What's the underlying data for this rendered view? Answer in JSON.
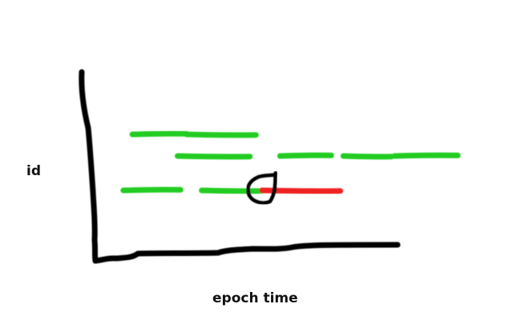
{
  "chart_data": {
    "type": "line",
    "style": "hand-drawn sketch",
    "xlabel": "epoch time",
    "ylabel": "id",
    "grid": false,
    "legend": "none",
    "axis_color": "#000000",
    "segments": [
      {
        "row": 1,
        "color": "#22cc22",
        "parts": [
          [
            0.12,
            0.3
          ],
          [
            0.3,
            0.53
          ]
        ]
      },
      {
        "row": 2,
        "color": "#22cc22",
        "parts": [
          [
            0.27,
            0.51
          ],
          [
            0.61,
            0.78
          ],
          [
            0.82,
            0.98
          ],
          [
            0.99,
            1.2
          ]
        ]
      },
      {
        "row": 3,
        "color": "#22cc22",
        "parts": [
          [
            0.09,
            0.28
          ],
          [
            0.35,
            0.55
          ]
        ]
      },
      {
        "row": 3,
        "color": "#ee2222",
        "parts": [
          [
            0.55,
            0.81
          ]
        ]
      }
    ],
    "annotations": [
      {
        "shape": "hand-drawn circle",
        "color": "#000000",
        "x": 0.55,
        "row": 3
      }
    ]
  }
}
